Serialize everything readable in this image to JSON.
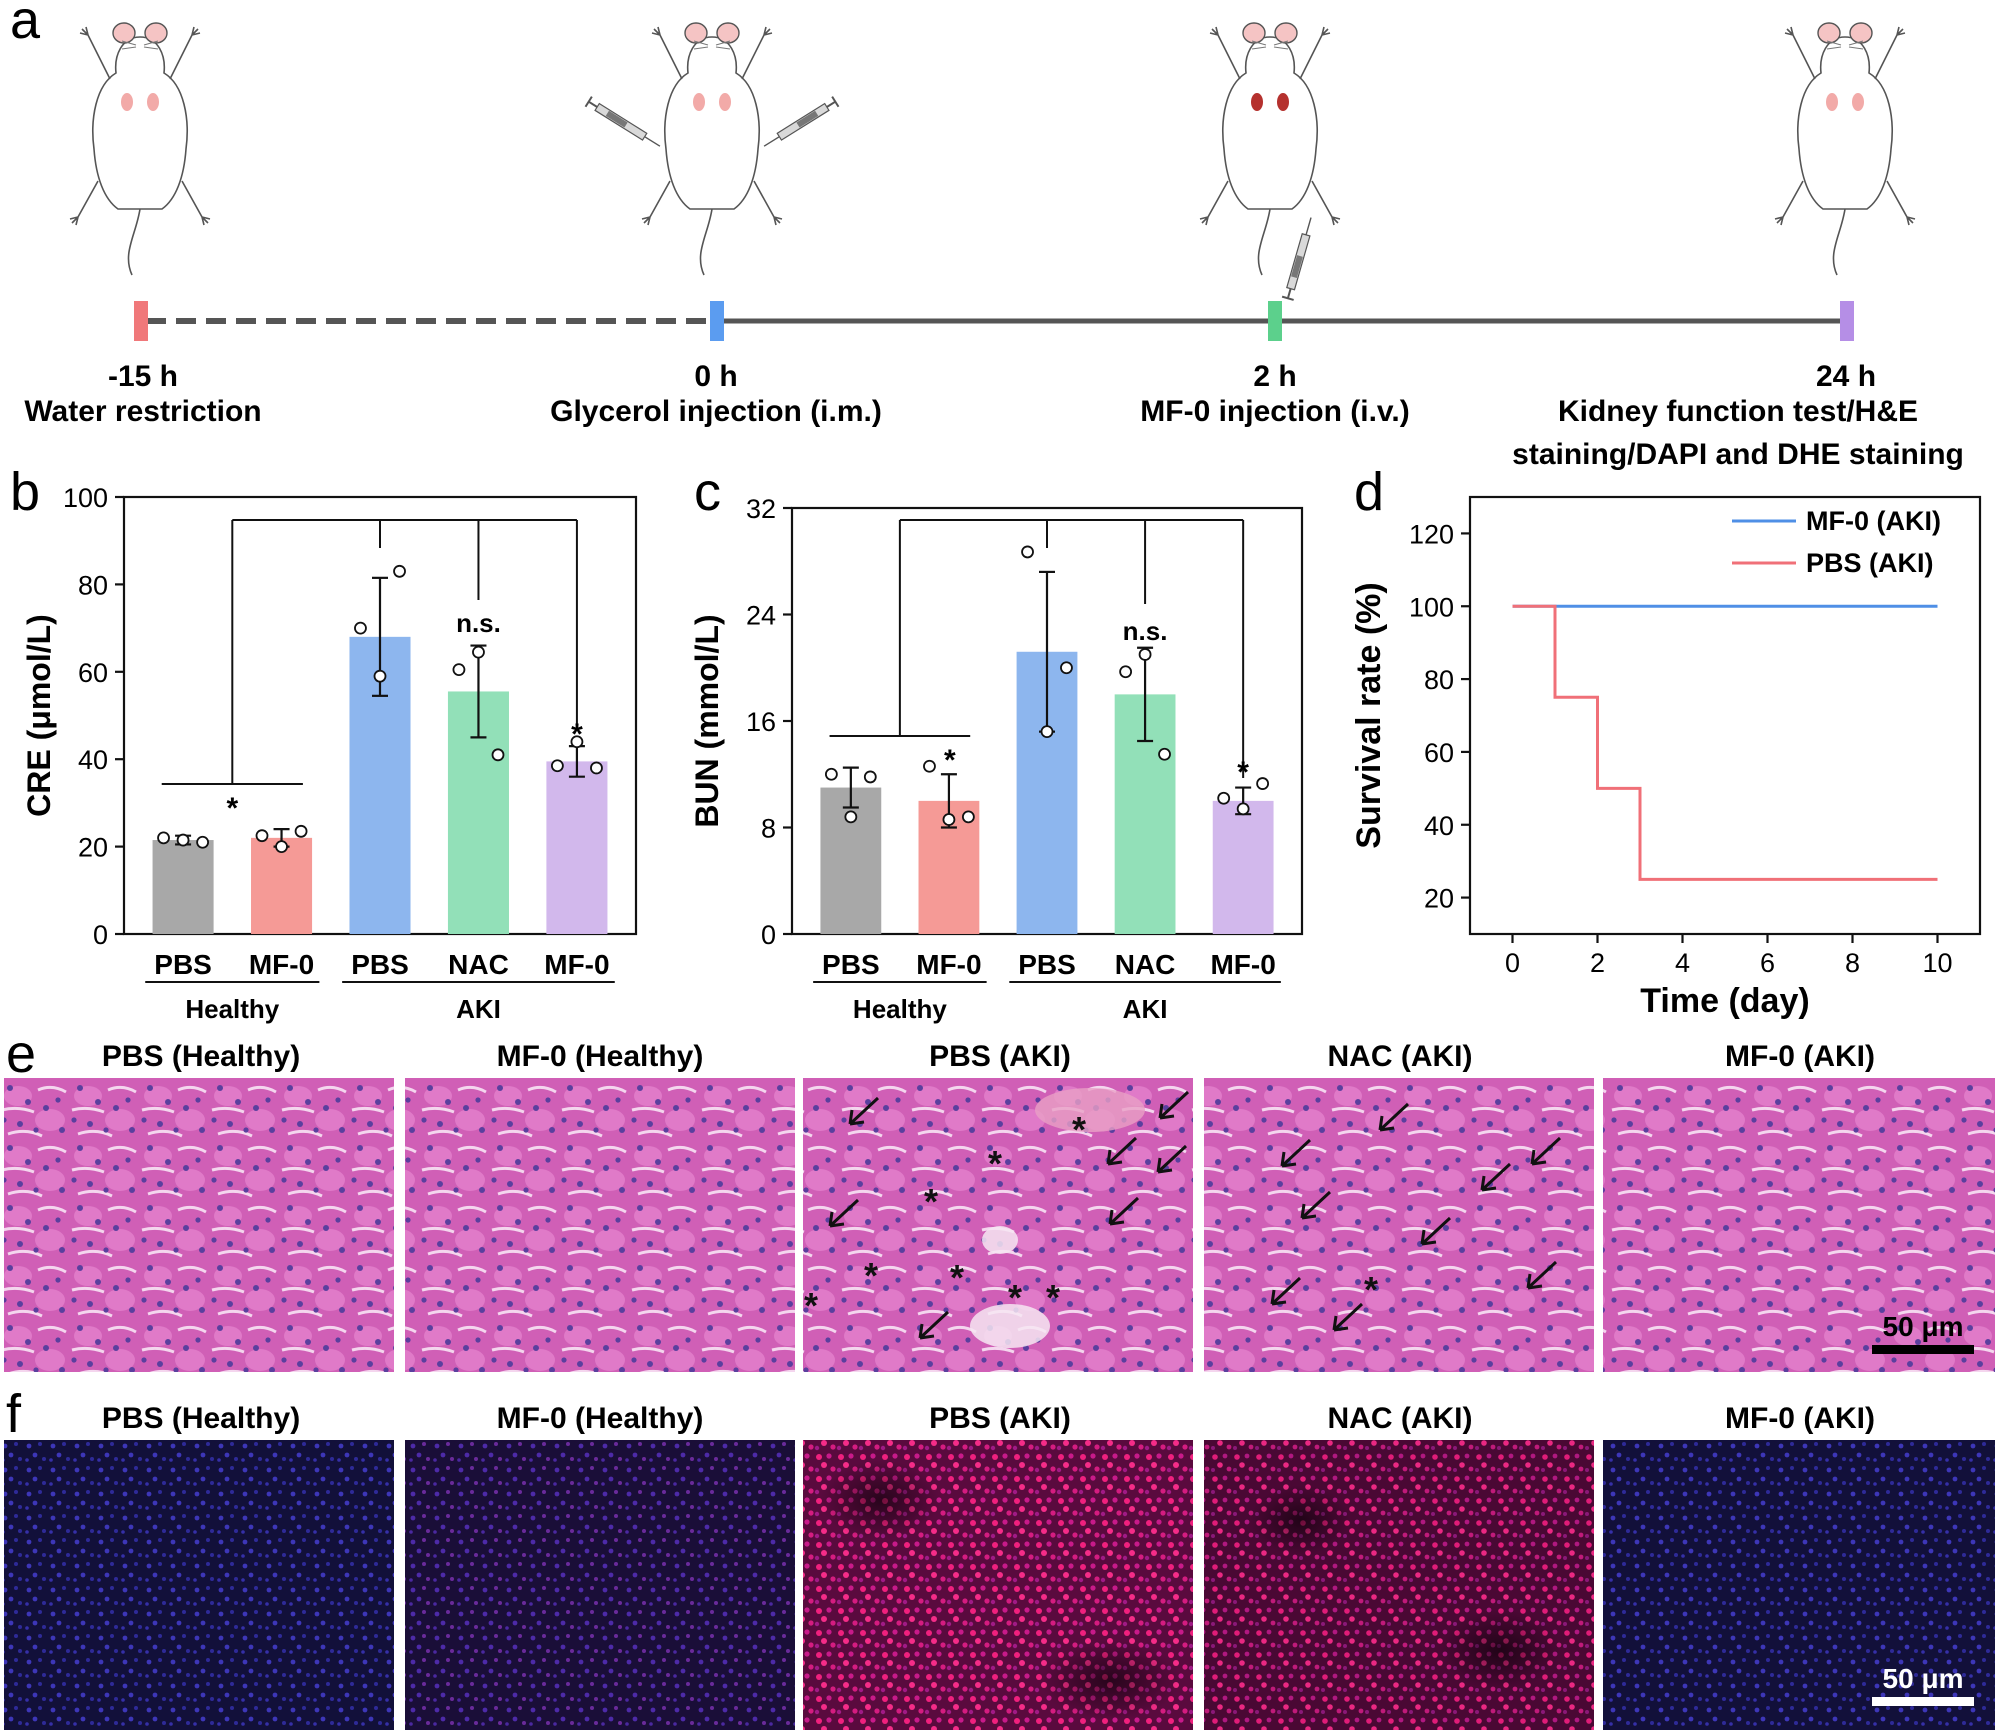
{
  "panels": {
    "a": "a",
    "b": "b",
    "c": "c",
    "d": "d",
    "e": "e",
    "f": "f"
  },
  "timeline": {
    "points": [
      {
        "time": "-15 h",
        "event": "Water restriction",
        "color": "#f0787a"
      },
      {
        "time": "0 h",
        "event": "Glycerol injection (i.m.)",
        "color": "#5b9cf0"
      },
      {
        "time": "2 h",
        "event": "MF-0 injection (i.v.)",
        "color": "#5cd08c"
      },
      {
        "time": "24 h",
        "event_lines": [
          "Kidney function test/H&E",
          "staining/DAPI and DHE staining"
        ],
        "color": "#b58ee6"
      }
    ]
  },
  "chart_data": [
    {
      "id": "b",
      "type": "bar",
      "ylabel": "CRE (μmol/L)",
      "ylim": [
        0,
        100
      ],
      "yticks": [
        0,
        20,
        40,
        60,
        80,
        100
      ],
      "categories": [
        "PBS",
        "MF-0",
        "PBS",
        "NAC",
        "MF-0"
      ],
      "groups": [
        {
          "label": "Healthy",
          "span": [
            0,
            1
          ]
        },
        {
          "label": "AKI",
          "span": [
            2,
            4
          ]
        }
      ],
      "values": [
        21.5,
        22.0,
        68.0,
        55.5,
        39.5
      ],
      "errors": [
        1.0,
        2.0,
        13.5,
        10.5,
        3.5
      ],
      "points": [
        [
          22,
          21.5,
          21
        ],
        [
          22.5,
          20,
          23.5
        ],
        [
          70,
          59,
          83
        ],
        [
          60.5,
          64.5,
          41
        ],
        [
          38.5,
          44,
          38
        ]
      ],
      "colors": [
        "#a8a8a8",
        "#f59a96",
        "#8db6ee",
        "#92e0b8",
        "#d2b8ec"
      ],
      "annotations": [
        "*",
        "n.s.",
        "*"
      ]
    },
    {
      "id": "c",
      "type": "bar",
      "ylabel": "BUN (mmol/L)",
      "ylim": [
        0,
        32
      ],
      "yticks": [
        0,
        8,
        16,
        24,
        32
      ],
      "categories": [
        "PBS",
        "MF-0",
        "PBS",
        "NAC",
        "MF-0"
      ],
      "groups": [
        {
          "label": "Healthy",
          "span": [
            0,
            1
          ]
        },
        {
          "label": "AKI",
          "span": [
            2,
            4
          ]
        }
      ],
      "values": [
        11.0,
        10.0,
        21.2,
        18.0,
        10.0
      ],
      "errors": [
        1.5,
        2.0,
        6.0,
        3.5,
        1.0
      ],
      "points": [
        [
          12,
          8.8,
          11.8
        ],
        [
          12.6,
          8.6,
          8.8
        ],
        [
          28.7,
          15.2,
          20
        ],
        [
          19.7,
          21,
          13.5
        ],
        [
          10.2,
          9.4,
          11.3
        ]
      ],
      "colors": [
        "#a8a8a8",
        "#f59a96",
        "#8db6ee",
        "#92e0b8",
        "#d2b8ec"
      ],
      "annotations": [
        "*",
        "n.s.",
        "*"
      ]
    },
    {
      "id": "d",
      "type": "line",
      "step": true,
      "xlabel": "Time (day)",
      "ylabel": "Survival rate (%)",
      "xlim": [
        -1,
        11
      ],
      "ylim": [
        10,
        130
      ],
      "xticks": [
        0,
        2,
        4,
        6,
        8,
        10
      ],
      "yticks": [
        20,
        40,
        60,
        80,
        100,
        120
      ],
      "series": [
        {
          "name": "MF-0 (AKI)",
          "color": "#4f8fe6",
          "x": [
            0,
            10
          ],
          "y": [
            100,
            100
          ]
        },
        {
          "name": "PBS (AKI)",
          "color": "#f07078",
          "x": [
            0,
            1,
            1,
            2,
            2,
            3,
            3,
            10
          ],
          "y": [
            100,
            100,
            75,
            75,
            50,
            50,
            25,
            25
          ]
        }
      ]
    }
  ],
  "he_row": {
    "titles": [
      "PBS (Healthy)",
      "MF-0 (Healthy)",
      "PBS (AKI)",
      "NAC (AKI)",
      "MF-0 (AKI)"
    ],
    "scale_bar": "50 μm"
  },
  "fl_row": {
    "titles": [
      "PBS (Healthy)",
      "MF-0 (Healthy)",
      "PBS (AKI)",
      "NAC (AKI)",
      "MF-0 (AKI)"
    ],
    "scale_bar": "50 μm"
  }
}
